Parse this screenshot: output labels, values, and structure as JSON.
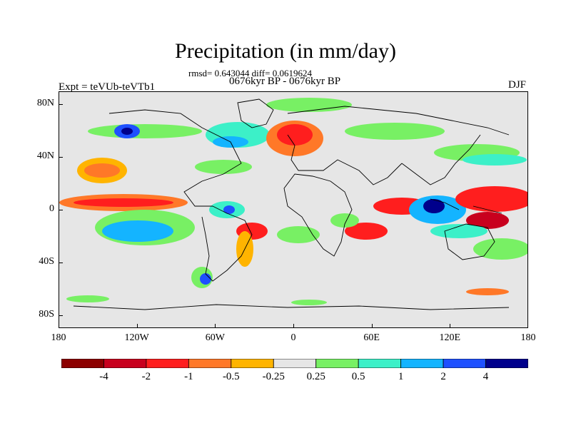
{
  "title": "Precipitation (in mm/day)",
  "stats": "rmsd= 0.643044 diff= 0.0619624",
  "period": "0676kyr BP - 0676kyr BP",
  "experiment": "Expt = teVUb-teVTb1",
  "season": "DJF",
  "axes": {
    "lat_labels": [
      "80N",
      "40N",
      "0",
      "40S",
      "80S"
    ],
    "lat_values": [
      80,
      40,
      0,
      -40,
      -80
    ],
    "lon_labels": [
      "180",
      "120W",
      "60W",
      "0",
      "60E",
      "120E",
      "180"
    ],
    "lon_values": [
      -180,
      -120,
      -60,
      0,
      60,
      120,
      180
    ],
    "lat_range": [
      -90,
      90
    ],
    "lon_range": [
      -180,
      180
    ]
  },
  "colorbar": {
    "colors": [
      "#8c0000",
      "#c8001e",
      "#ff1e1e",
      "#ff7828",
      "#ffb400",
      "#e6e6e6",
      "#78f064",
      "#3cf0c8",
      "#14b4ff",
      "#1e50ff",
      "#00008c"
    ],
    "labels": [
      "-4",
      "-2",
      "-1",
      "-0.5",
      "-0.25",
      "0.25",
      "0.5",
      "1",
      "2",
      "4"
    ]
  },
  "background_color": "#e6e6e6"
}
